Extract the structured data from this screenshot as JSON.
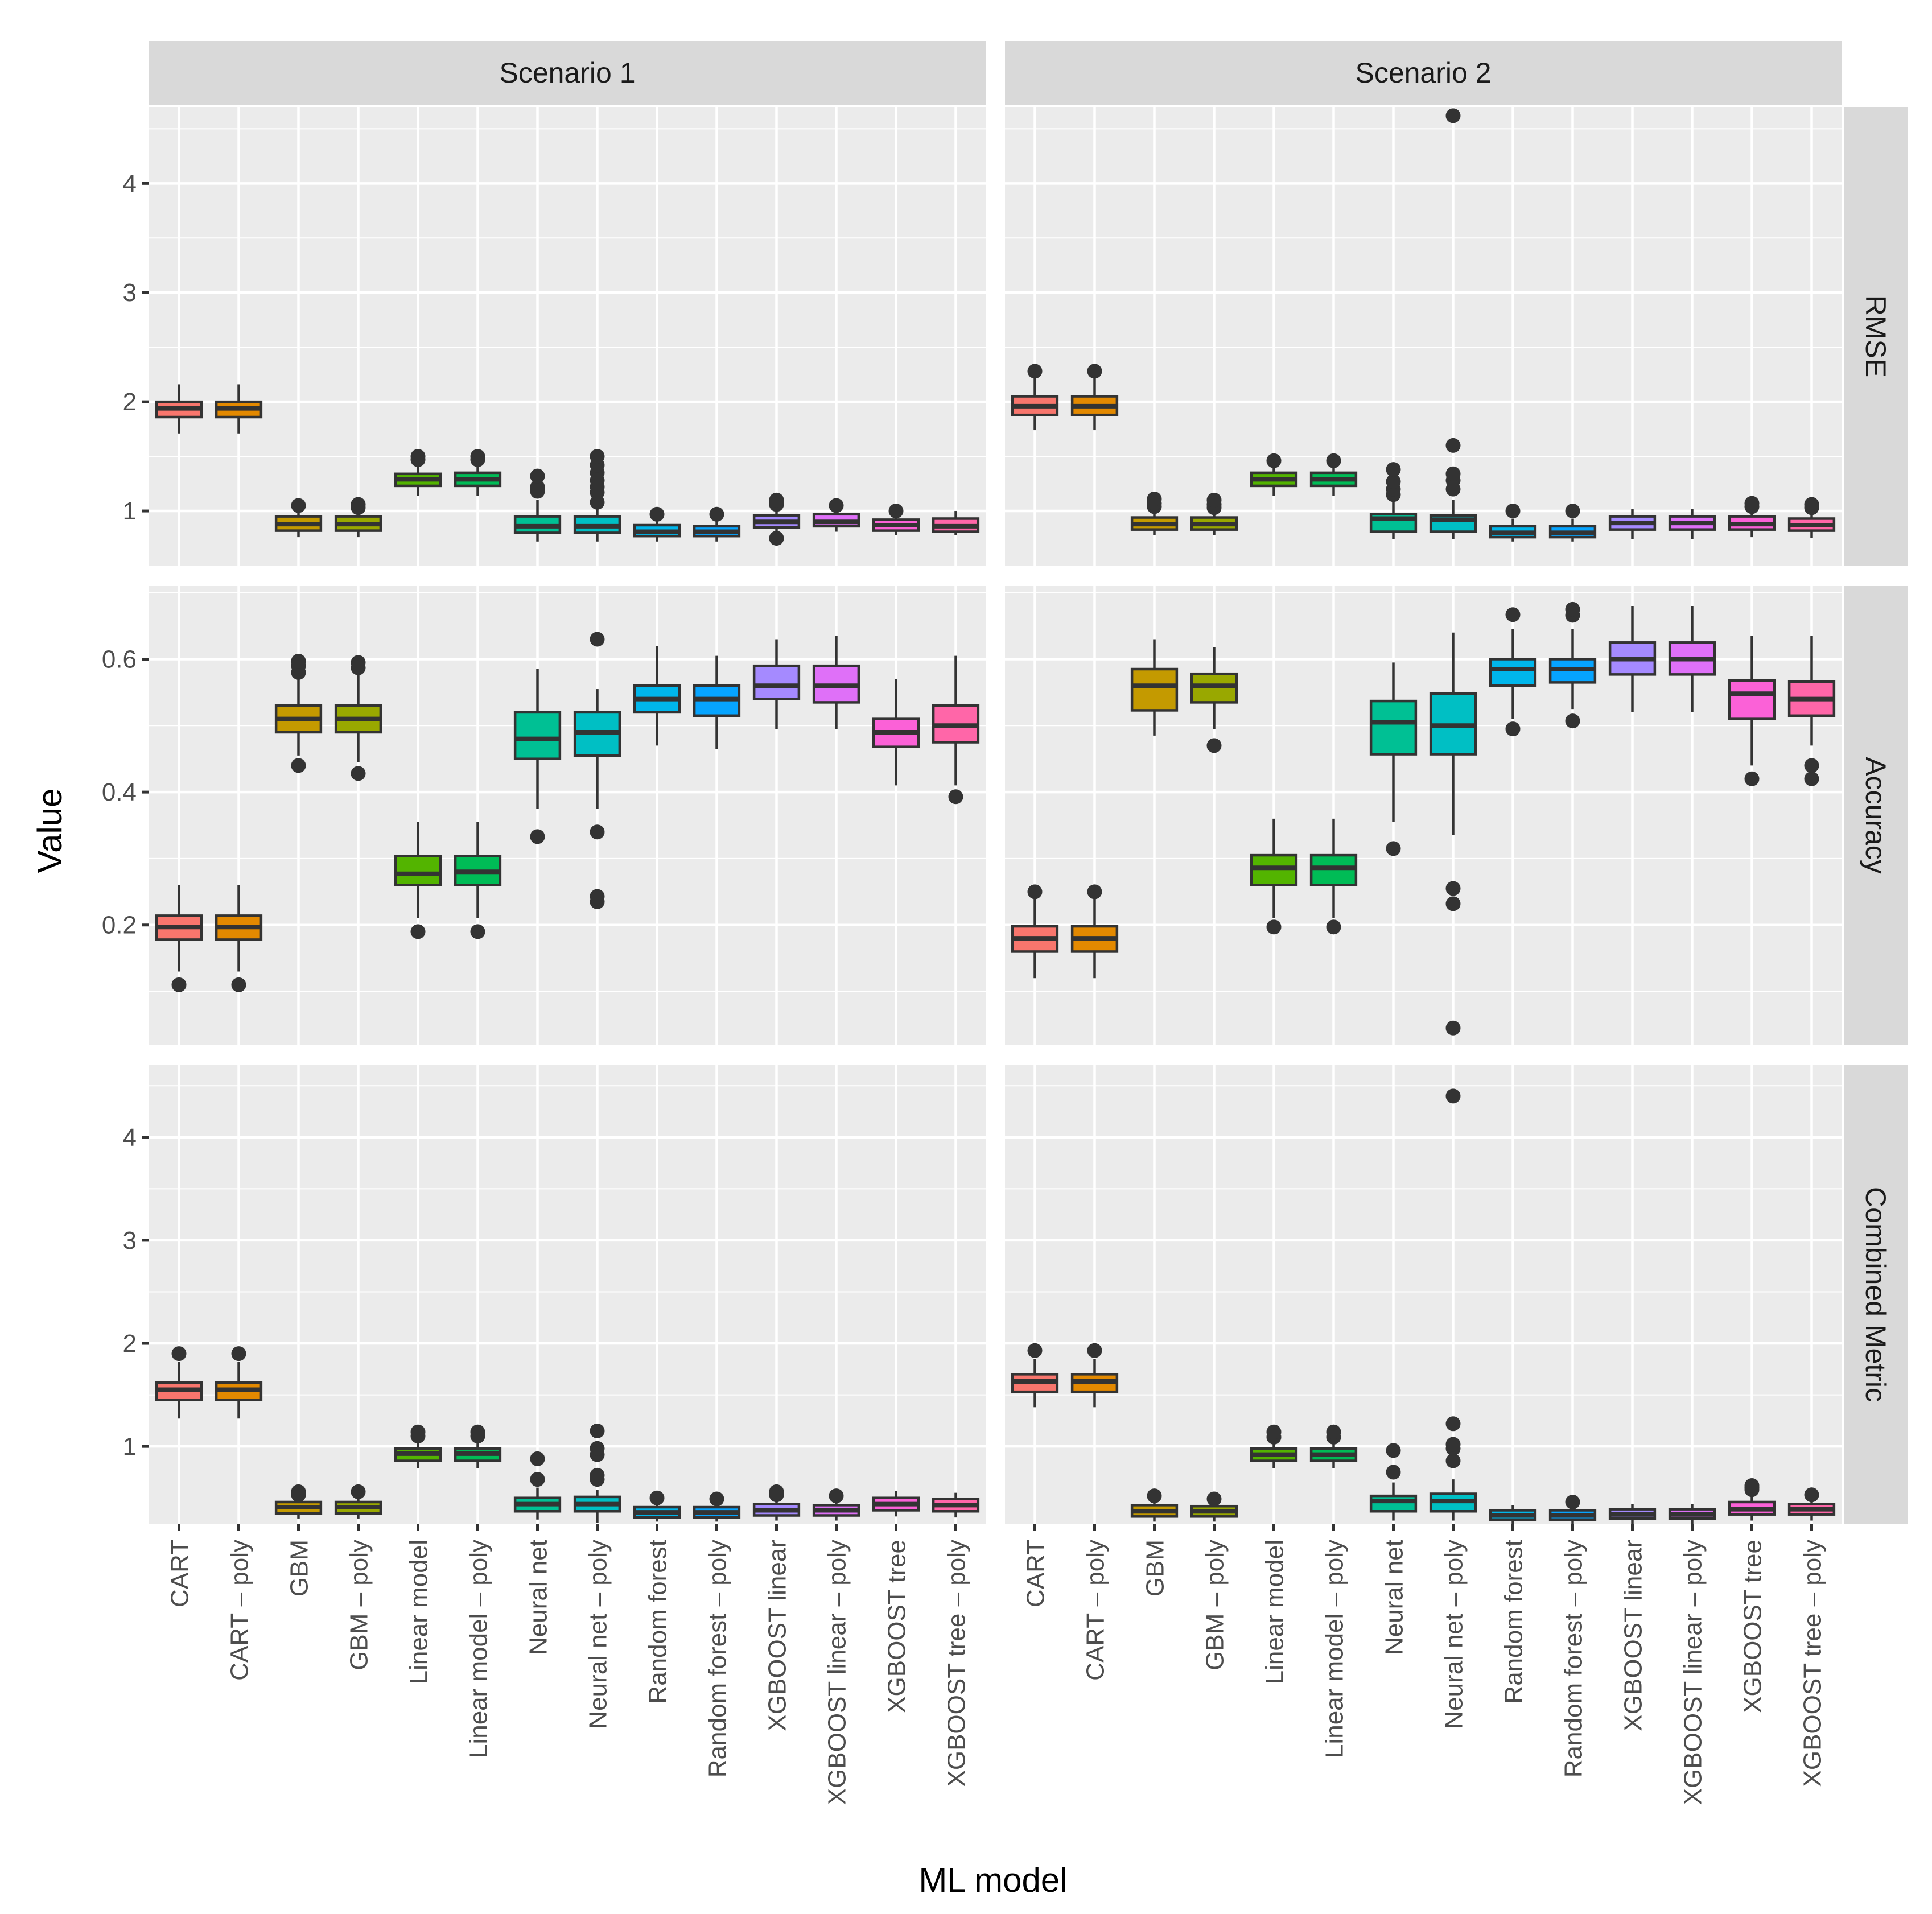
{
  "chart_data": {
    "type": "boxplot",
    "xlabel": "ML model",
    "ylabel": "Value",
    "columns": [
      "Scenario 1",
      "Scenario 2"
    ],
    "rows": [
      "RMSE",
      "Accuracy",
      "Combined Metric"
    ],
    "categories": [
      "CART",
      "CART – poly",
      "GBM",
      "GBM – poly",
      "Linear model",
      "Linear model – poly",
      "Neural net",
      "Neural net – poly",
      "Random forest",
      "Random forest – poly",
      "XGBOOST linear",
      "XGBOOST linear – poly",
      "XGBOOST tree",
      "XGBOOST tree – poly"
    ],
    "colors": [
      "#F8766D",
      "#E38900",
      "#C49A00",
      "#99A800",
      "#53B400",
      "#00BC56",
      "#00C094",
      "#00BFC4",
      "#00B6EB",
      "#06A4FF",
      "#A58AFF",
      "#DF70F8",
      "#FB61D7",
      "#FF66A8"
    ],
    "outline_color": "#333333",
    "axes": {
      "RMSE": {
        "ylim": [
          0.5,
          4.7
        ],
        "ticks": [
          1,
          2,
          3,
          4
        ],
        "tick_labels": [
          "1",
          "2",
          "3",
          "4"
        ],
        "minor": [
          1.5,
          2.5,
          3.5,
          4.5
        ]
      },
      "Accuracy": {
        "ylim": [
          0.02,
          0.71
        ],
        "ticks": [
          0.2,
          0.4,
          0.6
        ],
        "tick_labels": [
          "0.2",
          "0.4",
          "0.6"
        ],
        "minor": [
          0.1,
          0.3,
          0.5,
          0.7
        ]
      },
      "Combined Metric": {
        "ylim": [
          0.25,
          4.7
        ],
        "ticks": [
          1,
          2,
          3,
          4
        ],
        "tick_labels": [
          "1",
          "2",
          "3",
          "4"
        ],
        "minor": [
          1.5,
          2.5,
          3.5,
          4.5
        ]
      }
    },
    "boxes": {
      "Scenario 1": {
        "RMSE": [
          {
            "q1": 1.86,
            "med": 1.94,
            "q3": 2.0,
            "wlo": 1.71,
            "whi": 2.16,
            "out": []
          },
          {
            "q1": 1.86,
            "med": 1.94,
            "q3": 2.0,
            "wlo": 1.71,
            "whi": 2.16,
            "out": []
          },
          {
            "q1": 0.82,
            "med": 0.88,
            "q3": 0.95,
            "wlo": 0.76,
            "whi": 1.02,
            "out": [
              1.05
            ]
          },
          {
            "q1": 0.82,
            "med": 0.88,
            "q3": 0.95,
            "wlo": 0.76,
            "whi": 1.01,
            "out": [
              1.03,
              1.06
            ]
          },
          {
            "q1": 1.23,
            "med": 1.29,
            "q3": 1.34,
            "wlo": 1.14,
            "whi": 1.44,
            "out": [
              1.47,
              1.5
            ]
          },
          {
            "q1": 1.23,
            "med": 1.29,
            "q3": 1.35,
            "wlo": 1.14,
            "whi": 1.44,
            "out": [
              1.47,
              1.5
            ]
          },
          {
            "q1": 0.8,
            "med": 0.86,
            "q3": 0.95,
            "wlo": 0.72,
            "whi": 1.1,
            "out": [
              1.18,
              1.22,
              1.32
            ]
          },
          {
            "q1": 0.8,
            "med": 0.86,
            "q3": 0.95,
            "wlo": 0.72,
            "whi": 1.03,
            "out": [
              1.08,
              1.17,
              1.22,
              1.28,
              1.35,
              1.42,
              1.5
            ]
          },
          {
            "q1": 0.77,
            "med": 0.81,
            "q3": 0.87,
            "wlo": 0.72,
            "whi": 0.93,
            "out": [
              0.97
            ]
          },
          {
            "q1": 0.77,
            "med": 0.81,
            "q3": 0.86,
            "wlo": 0.72,
            "whi": 0.93,
            "out": [
              0.97
            ]
          },
          {
            "q1": 0.85,
            "med": 0.9,
            "q3": 0.96,
            "wlo": 0.8,
            "whi": 1.02,
            "out": [
              0.75,
              1.06,
              1.1
            ]
          },
          {
            "q1": 0.86,
            "med": 0.9,
            "q3": 0.97,
            "wlo": 0.81,
            "whi": 1.02,
            "out": [
              1.05
            ]
          },
          {
            "q1": 0.82,
            "med": 0.87,
            "q3": 0.92,
            "wlo": 0.78,
            "whi": 0.97,
            "out": [
              1.0
            ]
          },
          {
            "q1": 0.81,
            "med": 0.86,
            "q3": 0.93,
            "wlo": 0.78,
            "whi": 1.0,
            "out": []
          }
        ],
        "Accuracy": [
          {
            "q1": 0.178,
            "med": 0.197,
            "q3": 0.214,
            "wlo": 0.13,
            "whi": 0.26,
            "out": [
              0.11
            ]
          },
          {
            "q1": 0.178,
            "med": 0.197,
            "q3": 0.214,
            "wlo": 0.13,
            "whi": 0.26,
            "out": [
              0.11
            ]
          },
          {
            "q1": 0.49,
            "med": 0.51,
            "q3": 0.53,
            "wlo": 0.455,
            "whi": 0.575,
            "out": [
              0.44,
              0.58,
              0.59,
              0.597
            ]
          },
          {
            "q1": 0.49,
            "med": 0.51,
            "q3": 0.53,
            "wlo": 0.445,
            "whi": 0.58,
            "out": [
              0.428,
              0.587,
              0.595
            ]
          },
          {
            "q1": 0.26,
            "med": 0.277,
            "q3": 0.304,
            "wlo": 0.21,
            "whi": 0.355,
            "out": [
              0.19
            ]
          },
          {
            "q1": 0.26,
            "med": 0.28,
            "q3": 0.304,
            "wlo": 0.21,
            "whi": 0.355,
            "out": [
              0.19
            ]
          },
          {
            "q1": 0.45,
            "med": 0.48,
            "q3": 0.52,
            "wlo": 0.375,
            "whi": 0.585,
            "out": [
              0.333
            ]
          },
          {
            "q1": 0.455,
            "med": 0.49,
            "q3": 0.52,
            "wlo": 0.375,
            "whi": 0.555,
            "out": [
              0.235,
              0.243,
              0.34,
              0.63
            ]
          },
          {
            "q1": 0.52,
            "med": 0.54,
            "q3": 0.56,
            "wlo": 0.47,
            "whi": 0.62,
            "out": []
          },
          {
            "q1": 0.515,
            "med": 0.54,
            "q3": 0.56,
            "wlo": 0.465,
            "whi": 0.605,
            "out": []
          },
          {
            "q1": 0.54,
            "med": 0.56,
            "q3": 0.59,
            "wlo": 0.495,
            "whi": 0.63,
            "out": []
          },
          {
            "q1": 0.535,
            "med": 0.56,
            "q3": 0.59,
            "wlo": 0.495,
            "whi": 0.635,
            "out": []
          },
          {
            "q1": 0.468,
            "med": 0.49,
            "q3": 0.51,
            "wlo": 0.41,
            "whi": 0.57,
            "out": []
          },
          {
            "q1": 0.475,
            "med": 0.5,
            "q3": 0.53,
            "wlo": 0.41,
            "whi": 0.605,
            "out": [
              0.393
            ]
          }
        ],
        "Combined Metric": [
          {
            "q1": 1.45,
            "med": 1.55,
            "q3": 1.62,
            "wlo": 1.27,
            "whi": 1.82,
            "out": [
              1.9
            ]
          },
          {
            "q1": 1.45,
            "med": 1.55,
            "q3": 1.62,
            "wlo": 1.27,
            "whi": 1.82,
            "out": [
              1.9
            ]
          },
          {
            "q1": 0.35,
            "med": 0.41,
            "q3": 0.46,
            "wlo": 0.3,
            "whi": 0.5,
            "out": [
              0.53,
              0.56
            ]
          },
          {
            "q1": 0.35,
            "med": 0.41,
            "q3": 0.46,
            "wlo": 0.3,
            "whi": 0.52,
            "out": [
              0.56
            ]
          },
          {
            "q1": 0.86,
            "med": 0.93,
            "q3": 0.98,
            "wlo": 0.79,
            "whi": 1.07,
            "out": [
              1.1,
              1.14
            ]
          },
          {
            "q1": 0.86,
            "med": 0.93,
            "q3": 0.98,
            "wlo": 0.79,
            "whi": 1.07,
            "out": [
              1.1,
              1.14
            ]
          },
          {
            "q1": 0.37,
            "med": 0.44,
            "q3": 0.5,
            "wlo": 0.29,
            "whi": 0.6,
            "out": [
              0.68,
              0.88
            ]
          },
          {
            "q1": 0.37,
            "med": 0.44,
            "q3": 0.51,
            "wlo": 0.26,
            "whi": 0.58,
            "out": [
              0.68,
              0.72,
              0.92,
              0.98,
              1.15
            ]
          },
          {
            "q1": 0.31,
            "med": 0.36,
            "q3": 0.41,
            "wlo": 0.27,
            "whi": 0.46,
            "out": [
              0.5
            ]
          },
          {
            "q1": 0.31,
            "med": 0.36,
            "q3": 0.41,
            "wlo": 0.27,
            "whi": 0.46,
            "out": [
              0.49
            ]
          },
          {
            "q1": 0.33,
            "med": 0.38,
            "q3": 0.44,
            "wlo": 0.28,
            "whi": 0.49,
            "out": [
              0.53,
              0.56
            ]
          },
          {
            "q1": 0.33,
            "med": 0.38,
            "q3": 0.43,
            "wlo": 0.28,
            "whi": 0.48,
            "out": [
              0.52
            ]
          },
          {
            "q1": 0.38,
            "med": 0.44,
            "q3": 0.5,
            "wlo": 0.32,
            "whi": 0.57,
            "out": []
          },
          {
            "q1": 0.37,
            "med": 0.43,
            "q3": 0.49,
            "wlo": 0.31,
            "whi": 0.55,
            "out": []
          }
        ]
      },
      "Scenario 2": {
        "RMSE": [
          {
            "q1": 1.88,
            "med": 1.96,
            "q3": 2.05,
            "wlo": 1.74,
            "whi": 2.22,
            "out": [
              2.28
            ]
          },
          {
            "q1": 1.88,
            "med": 1.96,
            "q3": 2.05,
            "wlo": 1.74,
            "whi": 2.22,
            "out": [
              2.28
            ]
          },
          {
            "q1": 0.83,
            "med": 0.88,
            "q3": 0.94,
            "wlo": 0.78,
            "whi": 1.0,
            "out": [
              1.04,
              1.07,
              1.11
            ]
          },
          {
            "q1": 0.83,
            "med": 0.88,
            "q3": 0.94,
            "wlo": 0.78,
            "whi": 1.0,
            "out": [
              1.03,
              1.06,
              1.1
            ]
          },
          {
            "q1": 1.23,
            "med": 1.29,
            "q3": 1.35,
            "wlo": 1.14,
            "whi": 1.43,
            "out": [
              1.46
            ]
          },
          {
            "q1": 1.23,
            "med": 1.29,
            "q3": 1.35,
            "wlo": 1.14,
            "whi": 1.43,
            "out": [
              1.46
            ]
          },
          {
            "q1": 0.81,
            "med": 0.93,
            "q3": 0.97,
            "wlo": 0.74,
            "whi": 1.1,
            "out": [
              1.15,
              1.2,
              1.27,
              1.38
            ]
          },
          {
            "q1": 0.81,
            "med": 0.92,
            "q3": 0.96,
            "wlo": 0.74,
            "whi": 1.1,
            "out": [
              1.2,
              1.28,
              1.34,
              1.6,
              4.62
            ]
          },
          {
            "q1": 0.76,
            "med": 0.8,
            "q3": 0.86,
            "wlo": 0.72,
            "whi": 0.93,
            "out": [
              1.0
            ]
          },
          {
            "q1": 0.76,
            "med": 0.8,
            "q3": 0.86,
            "wlo": 0.72,
            "whi": 0.93,
            "out": [
              1.0
            ]
          },
          {
            "q1": 0.83,
            "med": 0.89,
            "q3": 0.95,
            "wlo": 0.74,
            "whi": 1.02,
            "out": []
          },
          {
            "q1": 0.83,
            "med": 0.89,
            "q3": 0.95,
            "wlo": 0.74,
            "whi": 1.02,
            "out": []
          },
          {
            "q1": 0.83,
            "med": 0.88,
            "q3": 0.95,
            "wlo": 0.76,
            "whi": 1.01,
            "out": [
              1.04,
              1.07
            ]
          },
          {
            "q1": 0.82,
            "med": 0.87,
            "q3": 0.93,
            "wlo": 0.75,
            "whi": 1.0,
            "out": [
              1.03,
              1.06
            ]
          }
        ],
        "Accuracy": [
          {
            "q1": 0.16,
            "med": 0.18,
            "q3": 0.198,
            "wlo": 0.12,
            "whi": 0.24,
            "out": [
              0.25
            ]
          },
          {
            "q1": 0.16,
            "med": 0.18,
            "q3": 0.198,
            "wlo": 0.12,
            "whi": 0.24,
            "out": [
              0.25
            ]
          },
          {
            "q1": 0.523,
            "med": 0.56,
            "q3": 0.585,
            "wlo": 0.485,
            "whi": 0.63,
            "out": []
          },
          {
            "q1": 0.535,
            "med": 0.56,
            "q3": 0.578,
            "wlo": 0.495,
            "whi": 0.618,
            "out": [
              0.47
            ]
          },
          {
            "q1": 0.26,
            "med": 0.286,
            "q3": 0.305,
            "wlo": 0.21,
            "whi": 0.36,
            "out": [
              0.197
            ]
          },
          {
            "q1": 0.26,
            "med": 0.286,
            "q3": 0.305,
            "wlo": 0.21,
            "whi": 0.36,
            "out": [
              0.197
            ]
          },
          {
            "q1": 0.457,
            "med": 0.505,
            "q3": 0.537,
            "wlo": 0.355,
            "whi": 0.595,
            "out": [
              0.315
            ]
          },
          {
            "q1": 0.457,
            "med": 0.5,
            "q3": 0.548,
            "wlo": 0.335,
            "whi": 0.64,
            "out": [
              0.045,
              0.232,
              0.255
            ]
          },
          {
            "q1": 0.56,
            "med": 0.585,
            "q3": 0.6,
            "wlo": 0.51,
            "whi": 0.645,
            "out": [
              0.495,
              0.667
            ]
          },
          {
            "q1": 0.565,
            "med": 0.585,
            "q3": 0.6,
            "wlo": 0.525,
            "whi": 0.645,
            "out": [
              0.507,
              0.666,
              0.675
            ]
          },
          {
            "q1": 0.577,
            "med": 0.6,
            "q3": 0.625,
            "wlo": 0.52,
            "whi": 0.68,
            "out": []
          },
          {
            "q1": 0.577,
            "med": 0.6,
            "q3": 0.625,
            "wlo": 0.52,
            "whi": 0.68,
            "out": []
          },
          {
            "q1": 0.51,
            "med": 0.548,
            "q3": 0.568,
            "wlo": 0.44,
            "whi": 0.635,
            "out": [
              0.42
            ]
          },
          {
            "q1": 0.515,
            "med": 0.54,
            "q3": 0.566,
            "wlo": 0.47,
            "whi": 0.635,
            "out": [
              0.42,
              0.44
            ]
          }
        ],
        "Combined Metric": [
          {
            "q1": 1.53,
            "med": 1.63,
            "q3": 1.7,
            "wlo": 1.38,
            "whi": 1.85,
            "out": [
              1.93
            ]
          },
          {
            "q1": 1.53,
            "med": 1.63,
            "q3": 1.7,
            "wlo": 1.38,
            "whi": 1.85,
            "out": [
              1.93
            ]
          },
          {
            "q1": 0.32,
            "med": 0.37,
            "q3": 0.43,
            "wlo": 0.27,
            "whi": 0.49,
            "out": [
              0.52
            ]
          },
          {
            "q1": 0.32,
            "med": 0.37,
            "q3": 0.42,
            "wlo": 0.27,
            "whi": 0.46,
            "out": [
              0.49
            ]
          },
          {
            "q1": 0.86,
            "med": 0.92,
            "q3": 0.98,
            "wlo": 0.79,
            "whi": 1.05,
            "out": [
              1.09,
              1.14
            ]
          },
          {
            "q1": 0.86,
            "med": 0.92,
            "q3": 0.98,
            "wlo": 0.79,
            "whi": 1.05,
            "out": [
              1.09,
              1.14
            ]
          },
          {
            "q1": 0.37,
            "med": 0.47,
            "q3": 0.52,
            "wlo": 0.28,
            "whi": 0.65,
            "out": [
              0.75,
              0.96
            ]
          },
          {
            "q1": 0.37,
            "med": 0.47,
            "q3": 0.54,
            "wlo": 0.28,
            "whi": 0.68,
            "out": [
              0.86,
              0.98,
              1.02,
              1.22,
              4.4
            ]
          },
          {
            "q1": 0.29,
            "med": 0.33,
            "q3": 0.38,
            "wlo": 0.25,
            "whi": 0.43,
            "out": []
          },
          {
            "q1": 0.29,
            "med": 0.33,
            "q3": 0.38,
            "wlo": 0.25,
            "whi": 0.43,
            "out": [
              0.46
            ]
          },
          {
            "q1": 0.3,
            "med": 0.34,
            "q3": 0.39,
            "wlo": 0.25,
            "whi": 0.44,
            "out": []
          },
          {
            "q1": 0.3,
            "med": 0.34,
            "q3": 0.39,
            "wlo": 0.25,
            "whi": 0.44,
            "out": []
          },
          {
            "q1": 0.34,
            "med": 0.39,
            "q3": 0.46,
            "wlo": 0.28,
            "whi": 0.53,
            "out": [
              0.58,
              0.6,
              0.62
            ]
          },
          {
            "q1": 0.34,
            "med": 0.39,
            "q3": 0.44,
            "wlo": 0.28,
            "whi": 0.5,
            "out": [
              0.53
            ]
          }
        ]
      }
    }
  }
}
